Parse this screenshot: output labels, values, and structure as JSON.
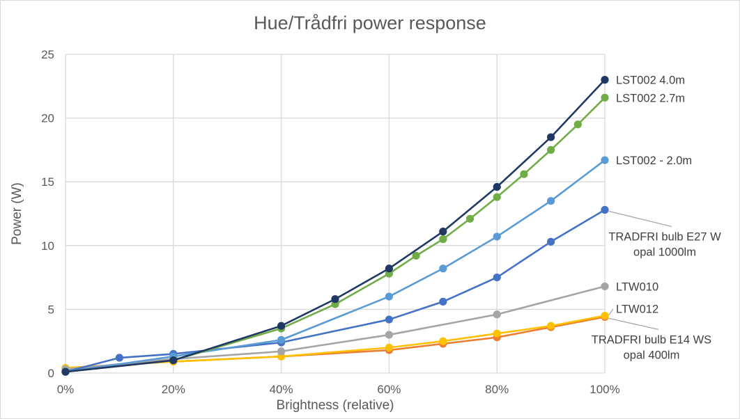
{
  "chart_data": {
    "type": "line",
    "title": "Hue/Trådfri power response",
    "xlabel": "Brightness (relative)",
    "ylabel": "Power (W)",
    "xlim": [
      0,
      100
    ],
    "ylim": [
      0,
      25
    ],
    "x_ticks": [
      "0%",
      "20%",
      "40%",
      "60%",
      "80%",
      "100%"
    ],
    "y_ticks": [
      "0",
      "5",
      "10",
      "15",
      "20",
      "25"
    ],
    "grid": true,
    "legend": "none",
    "series": [
      {
        "name": "LST002 4.0m",
        "color": "#203864",
        "points": [
          [
            0,
            0.1
          ],
          [
            20,
            1.0
          ],
          [
            40,
            3.7
          ],
          [
            50,
            5.8
          ],
          [
            60,
            8.2
          ],
          [
            70,
            11.1
          ],
          [
            80,
            14.6
          ],
          [
            90,
            18.5
          ],
          [
            100,
            23.0
          ]
        ]
      },
      {
        "name": "LST002 2.7m",
        "color": "#70ad47",
        "points": [
          [
            0,
            0.1
          ],
          [
            20,
            1.0
          ],
          [
            40,
            3.5
          ],
          [
            50,
            5.4
          ],
          [
            60,
            7.8
          ],
          [
            65,
            9.2
          ],
          [
            70,
            10.5
          ],
          [
            75,
            12.1
          ],
          [
            80,
            13.8
          ],
          [
            85,
            15.6
          ],
          [
            90,
            17.5
          ],
          [
            95,
            19.5
          ],
          [
            100,
            21.6
          ]
        ]
      },
      {
        "name": "LST002 - 2.0m",
        "color": "#5b9bd5",
        "points": [
          [
            0,
            0.1
          ],
          [
            20,
            1.3
          ],
          [
            40,
            2.6
          ],
          [
            60,
            6.0
          ],
          [
            70,
            8.2
          ],
          [
            80,
            10.7
          ],
          [
            90,
            13.5
          ],
          [
            100,
            16.7
          ]
        ]
      },
      {
        "name": "TRADFRI bulb E27 W opal 1000lm",
        "color": "#4472c4",
        "points": [
          [
            0,
            0.1
          ],
          [
            10,
            1.2
          ],
          [
            20,
            1.5
          ],
          [
            40,
            2.4
          ],
          [
            60,
            4.2
          ],
          [
            70,
            5.6
          ],
          [
            80,
            7.5
          ],
          [
            90,
            10.3
          ],
          [
            100,
            12.8
          ]
        ]
      },
      {
        "name": "LTW010",
        "color": "#a5a5a5",
        "points": [
          [
            0,
            0.3
          ],
          [
            20,
            1.1
          ],
          [
            40,
            1.7
          ],
          [
            60,
            3.0
          ],
          [
            80,
            4.6
          ],
          [
            100,
            6.8
          ]
        ]
      },
      {
        "name": "LTW012",
        "color": "#ffc000",
        "points": [
          [
            0,
            0.4
          ],
          [
            20,
            0.9
          ],
          [
            40,
            1.3
          ],
          [
            60,
            2.0
          ],
          [
            70,
            2.5
          ],
          [
            80,
            3.1
          ],
          [
            90,
            3.7
          ],
          [
            100,
            4.5
          ]
        ]
      },
      {
        "name": "TRADFRI bulb E14 WS opal 400lm",
        "color": "#ed7d31",
        "points": [
          [
            0,
            0.4
          ],
          [
            20,
            0.9
          ],
          [
            40,
            1.3
          ],
          [
            60,
            1.8
          ],
          [
            70,
            2.3
          ],
          [
            80,
            2.8
          ],
          [
            90,
            3.6
          ],
          [
            100,
            4.4
          ]
        ]
      }
    ],
    "annotations": [
      {
        "text": "LST002 4.0m",
        "series": "LST002 4.0m"
      },
      {
        "text": "LST002 2.7m",
        "series": "LST002 2.7m"
      },
      {
        "text": "LST002 - 2.0m",
        "series": "LST002 - 2.0m"
      },
      {
        "text": "TRADFRI bulb E27 W",
        "text2": "opal 1000lm",
        "series": "TRADFRI bulb E27 W opal 1000lm"
      },
      {
        "text": "LTW010",
        "series": "LTW010"
      },
      {
        "text": "LTW012",
        "series": "LTW012"
      },
      {
        "text": "TRADFRI bulb E14 WS",
        "text2": "opal 400lm",
        "series": "TRADFRI bulb E14 WS opal 400lm"
      }
    ]
  }
}
